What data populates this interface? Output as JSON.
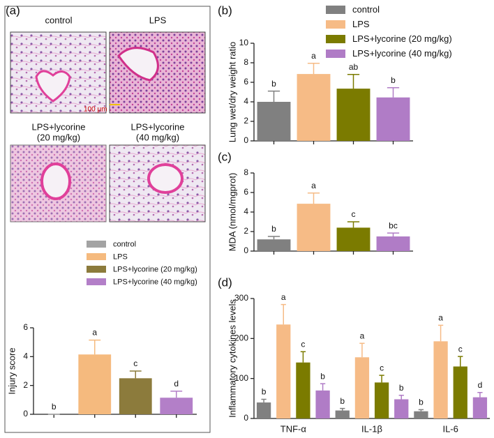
{
  "figure": {
    "panels": [
      "(a)",
      "(b)",
      "(c)",
      "(d)"
    ],
    "images": [
      {
        "caption": [
          "control"
        ]
      },
      {
        "caption": [
          "LPS"
        ]
      },
      {
        "caption": [
          "LPS+lycorine",
          "(20 mg/kg)"
        ]
      },
      {
        "caption": [
          "LPS+lycorine",
          "(40 mg/kg)"
        ]
      }
    ],
    "scale_bar": "100 μm"
  },
  "chart_data": [
    {
      "type": "bar",
      "ylabel": "Injury score",
      "categories": [
        null
      ],
      "ylim": [
        0,
        6
      ],
      "yticks": [
        0,
        2,
        4,
        6
      ],
      "legend": "top",
      "series": [
        {
          "name": "control",
          "color": "#a3a3a3",
          "values": [
            0
          ],
          "errors": [
            0
          ],
          "letters": [
            "b"
          ]
        },
        {
          "name": "LPS",
          "color": "#f5ba7e",
          "values": [
            4.15
          ],
          "errors": [
            1.0
          ],
          "letters": [
            "a"
          ]
        },
        {
          "name": "LPS+lycorine (20 mg/kg)",
          "color": "#8c7b3c",
          "values": [
            2.5
          ],
          "errors": [
            0.5
          ],
          "letters": [
            "c"
          ]
        },
        {
          "name": "LPS+lycorine (40 mg/kg)",
          "color": "#b37fc8",
          "values": [
            1.15
          ],
          "errors": [
            0.45
          ],
          "letters": [
            "d"
          ]
        }
      ]
    },
    {
      "type": "bar",
      "ylabel": "Lung wet/dry weight ratio",
      "categories": [
        null
      ],
      "ylim": [
        0,
        10
      ],
      "yticks": [
        0,
        2,
        4,
        6,
        8,
        10
      ],
      "legend": "top",
      "series": [
        {
          "name": "control",
          "color": "#808080",
          "values": [
            4.0
          ],
          "errors": [
            1.1
          ],
          "letters": [
            "b"
          ]
        },
        {
          "name": "LPS",
          "color": "#f6bb86",
          "values": [
            6.85
          ],
          "errors": [
            1.1
          ],
          "letters": [
            "a"
          ]
        },
        {
          "name": "LPS+lycorine (20 mg/kg)",
          "color": "#7b7b00",
          "values": [
            5.35
          ],
          "errors": [
            1.45
          ],
          "letters": [
            "ab"
          ]
        },
        {
          "name": "LPS+lycorine (40 mg/kg)",
          "color": "#b07cc6",
          "values": [
            4.45
          ],
          "errors": [
            1.0
          ],
          "letters": [
            "b"
          ]
        }
      ]
    },
    {
      "type": "bar",
      "ylabel": "MDA (nmol/mgprot)",
      "categories": [
        null
      ],
      "ylim": [
        0,
        8
      ],
      "yticks": [
        0,
        2,
        4,
        6,
        8
      ],
      "legend": "none",
      "series": [
        {
          "color": "#808080",
          "values": [
            1.2
          ],
          "errors": [
            0.3
          ],
          "letters": [
            "b"
          ]
        },
        {
          "color": "#f6bb86",
          "values": [
            4.85
          ],
          "errors": [
            1.1
          ],
          "letters": [
            "a"
          ]
        },
        {
          "color": "#7b7b00",
          "values": [
            2.4
          ],
          "errors": [
            0.6
          ],
          "letters": [
            "c"
          ]
        },
        {
          "color": "#b07cc6",
          "values": [
            1.5
          ],
          "errors": [
            0.35
          ],
          "letters": [
            "bc"
          ]
        }
      ]
    },
    {
      "type": "bar",
      "ylabel": "Inflammatory cytokines levels",
      "categories": [
        "TNF-α",
        "IL-1β",
        "IL-6"
      ],
      "ylim": [
        0,
        300
      ],
      "yticks": [
        0,
        100,
        200,
        300
      ],
      "legend": "none",
      "series": [
        {
          "color": "#808080",
          "values": [
            40,
            20,
            18
          ],
          "errors": [
            8,
            5,
            4
          ],
          "letters": [
            "b",
            "b",
            "b"
          ]
        },
        {
          "color": "#f6bb86",
          "values": [
            235,
            153,
            193
          ],
          "errors": [
            50,
            35,
            40
          ],
          "letters": [
            "a",
            "a",
            "a"
          ]
        },
        {
          "color": "#7b7b00",
          "values": [
            140,
            90,
            130
          ],
          "errors": [
            27,
            18,
            25
          ],
          "letters": [
            "c",
            "c",
            "c"
          ]
        },
        {
          "color": "#b07cc6",
          "values": [
            70,
            48,
            53
          ],
          "errors": [
            17,
            10,
            12
          ],
          "letters": [
            "b",
            "b",
            "d"
          ]
        }
      ]
    }
  ]
}
